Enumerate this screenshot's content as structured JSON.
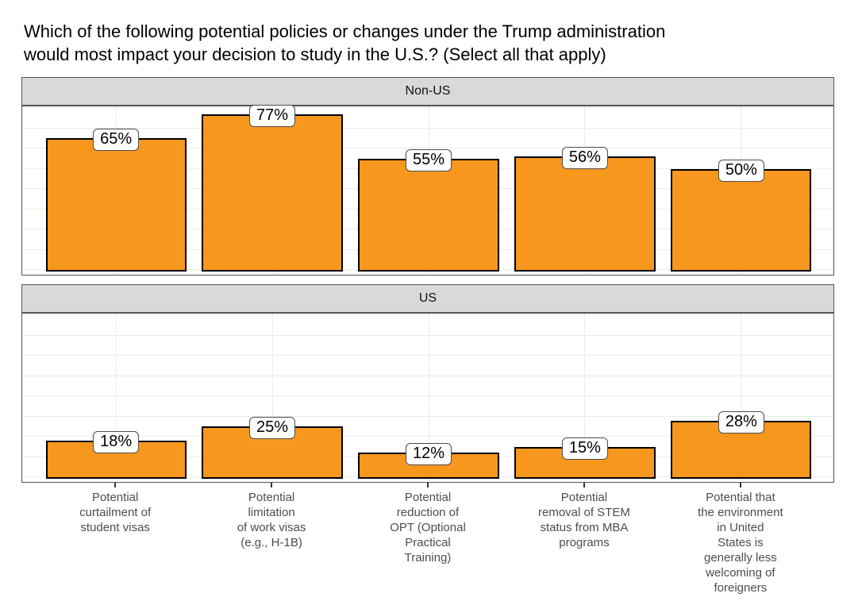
{
  "title": {
    "lines": [
      "Which of the following potential policies or changes under the Trump administration",
      "would most impact your decision to study in the U.S.? (Select all that apply)"
    ]
  },
  "chart_data": {
    "type": "bar",
    "faceted": true,
    "facet_labels": [
      "Non-US",
      "US"
    ],
    "categories": [
      "Potential\ncurtailment of\nstudent visas",
      "Potential\nlimitation\nof work visas\n(e.g., H-1B)",
      "Potential\nreduction of\nOPT (Optional\nPractical\nTraining)",
      "Potential\nremoval of STEM\nstatus from MBA\nprograms",
      "Potential that\nthe environment\nin United\nStates is\ngenerally less\nwelcoming of\nforeigners"
    ],
    "series": [
      {
        "name": "Non-US",
        "values": [
          65,
          77,
          55,
          56,
          50
        ]
      },
      {
        "name": "US",
        "values": [
          18,
          25,
          12,
          15,
          28
        ]
      }
    ],
    "value_labels": [
      [
        "65%",
        "77%",
        "55%",
        "56%",
        "50%"
      ],
      [
        "18%",
        "25%",
        "12%",
        "15%",
        "28%"
      ]
    ],
    "xlabel": "",
    "ylabel": "",
    "ylim": [
      0,
      84
    ],
    "grid_step_pct": 10,
    "grid_max_pct": 80,
    "legend": "none",
    "colors": {
      "bar_fill": "#F8971D",
      "bar_stroke": "#000000",
      "strip_fill": "#D9D9D9",
      "panel_border": "#555555",
      "gridline": "#EBEBEB",
      "axis_text": "#4D4D4D",
      "label_box_bg": "#FFFFFF",
      "label_box_border": "#4D4D4D",
      "title_color": "#000000"
    }
  }
}
